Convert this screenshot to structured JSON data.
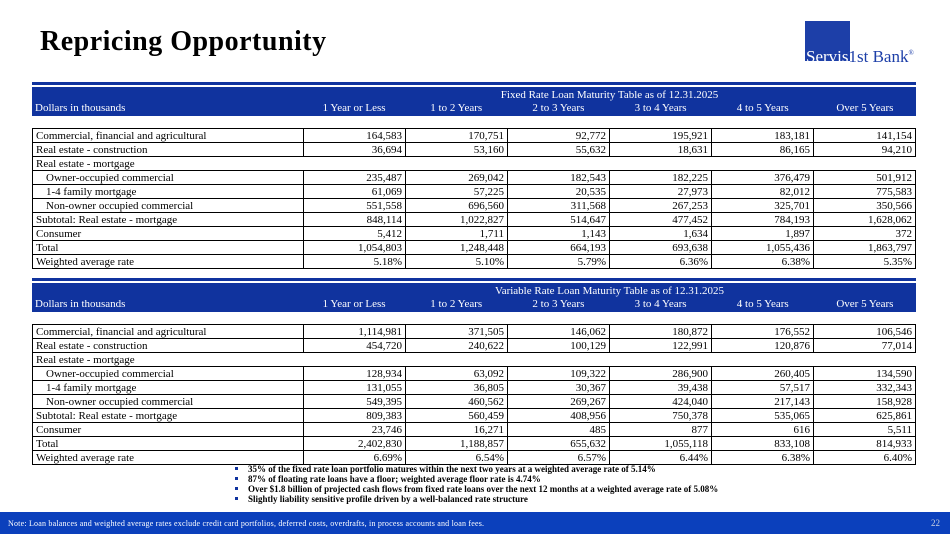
{
  "title": "Repricing Opportunity",
  "logo": {
    "part1": "Servis",
    "part2": "1st Bank",
    "registered": "®"
  },
  "colors": {
    "header_blue": "#10339E",
    "footer_blue": "#0B40BC",
    "logo_blue": "#1D3FA8"
  },
  "fixed_table": {
    "title": "Fixed Rate Loan Maturity Table as of 12.31.2025",
    "left_header": "Dollars in thousands",
    "columns": [
      "1 Year or Less",
      "1 to 2 Years",
      "2 to 3 Years",
      "3 to 4 Years",
      "4 to 5 Years",
      "Over 5 Years"
    ],
    "rows": [
      {
        "label": "Commercial, financial and agricultural",
        "values": [
          "164,583",
          "170,751",
          "92,772",
          "195,921",
          "183,181",
          "141,154"
        ]
      },
      {
        "label": "Real estate - construction",
        "values": [
          "36,694",
          "53,160",
          "55,632",
          "18,631",
          "86,165",
          "94,210"
        ]
      },
      {
        "label": "Real estate - mortgage",
        "blank": true
      },
      {
        "label": "Owner-occupied commercial",
        "indent": true,
        "values": [
          "235,487",
          "269,042",
          "182,543",
          "182,225",
          "376,479",
          "501,912"
        ]
      },
      {
        "label": "1-4 family mortgage",
        "indent": true,
        "values": [
          "61,069",
          "57,225",
          "20,535",
          "27,973",
          "82,012",
          "775,583"
        ]
      },
      {
        "label": "Non-owner occupied commercial",
        "indent": true,
        "values": [
          "551,558",
          "696,560",
          "311,568",
          "267,253",
          "325,701",
          "350,566"
        ]
      },
      {
        "label": "Subtotal: Real estate - mortgage",
        "values": [
          "848,114",
          "1,022,827",
          "514,647",
          "477,452",
          "784,193",
          "1,628,062"
        ]
      },
      {
        "label": "Consumer",
        "values": [
          "5,412",
          "1,711",
          "1,143",
          "1,634",
          "1,897",
          "372"
        ]
      },
      {
        "label": "Total",
        "values": [
          "1,054,803",
          "1,248,448",
          "664,193",
          "693,638",
          "1,055,436",
          "1,863,797"
        ]
      },
      {
        "label": "Weighted average rate",
        "values": [
          "5.18%",
          "5.10%",
          "5.79%",
          "6.36%",
          "6.38%",
          "5.35%"
        ]
      }
    ]
  },
  "variable_table": {
    "title": "Variable Rate Loan Maturity Table as of 12.31.2025",
    "left_header": "Dollars in thousands",
    "columns": [
      "1 Year or Less",
      "1 to 2 Years",
      "2 to 3 Years",
      "3 to 4 Years",
      "4 to 5 Years",
      "Over 5 Years"
    ],
    "rows": [
      {
        "label": "Commercial, financial and agricultural",
        "values": [
          "1,114,981",
          "371,505",
          "146,062",
          "180,872",
          "176,552",
          "106,546"
        ]
      },
      {
        "label": "Real estate - construction",
        "values": [
          "454,720",
          "240,622",
          "100,129",
          "122,991",
          "120,876",
          "77,014"
        ]
      },
      {
        "label": "Real estate - mortgage",
        "blank": true
      },
      {
        "label": "Owner-occupied commercial",
        "indent": true,
        "values": [
          "128,934",
          "63,092",
          "109,322",
          "286,900",
          "260,405",
          "134,590"
        ]
      },
      {
        "label": "1-4 family mortgage",
        "indent": true,
        "values": [
          "131,055",
          "36,805",
          "30,367",
          "39,438",
          "57,517",
          "332,343"
        ]
      },
      {
        "label": "Non-owner occupied commercial",
        "indent": true,
        "values": [
          "549,395",
          "460,562",
          "269,267",
          "424,040",
          "217,143",
          "158,928"
        ]
      },
      {
        "label": "Subtotal: Real estate - mortgage",
        "values": [
          "809,383",
          "560,459",
          "408,956",
          "750,378",
          "535,065",
          "625,861"
        ]
      },
      {
        "label": "Consumer",
        "values": [
          "23,746",
          "16,271",
          "485",
          "877",
          "616",
          "5,511"
        ]
      },
      {
        "label": "Total",
        "values": [
          "2,402,830",
          "1,188,857",
          "655,632",
          "1,055,118",
          "833,108",
          "814,933"
        ]
      },
      {
        "label": "Weighted average rate",
        "values": [
          "6.69%",
          "6.54%",
          "6.57%",
          "6.44%",
          "6.38%",
          "6.40%"
        ]
      }
    ]
  },
  "bullets": [
    "35% of the fixed rate loan portfolio matures within the next two years at a weighted average rate of 5.14%",
    "87% of floating rate loans have a floor; weighted average floor rate is 4.74%",
    "Over $1.8 billion of projected cash flows from fixed rate loans over the next 12 months at a weighted average rate of 5.08%",
    "Slightly liability sensitive profile driven by a well-balanced rate structure"
  ],
  "footer": {
    "note": "Note:  Loan balances and weighted average rates exclude credit card portfolios, deferred costs, overdrafts, in process accounts and loan fees.",
    "page": "22"
  }
}
